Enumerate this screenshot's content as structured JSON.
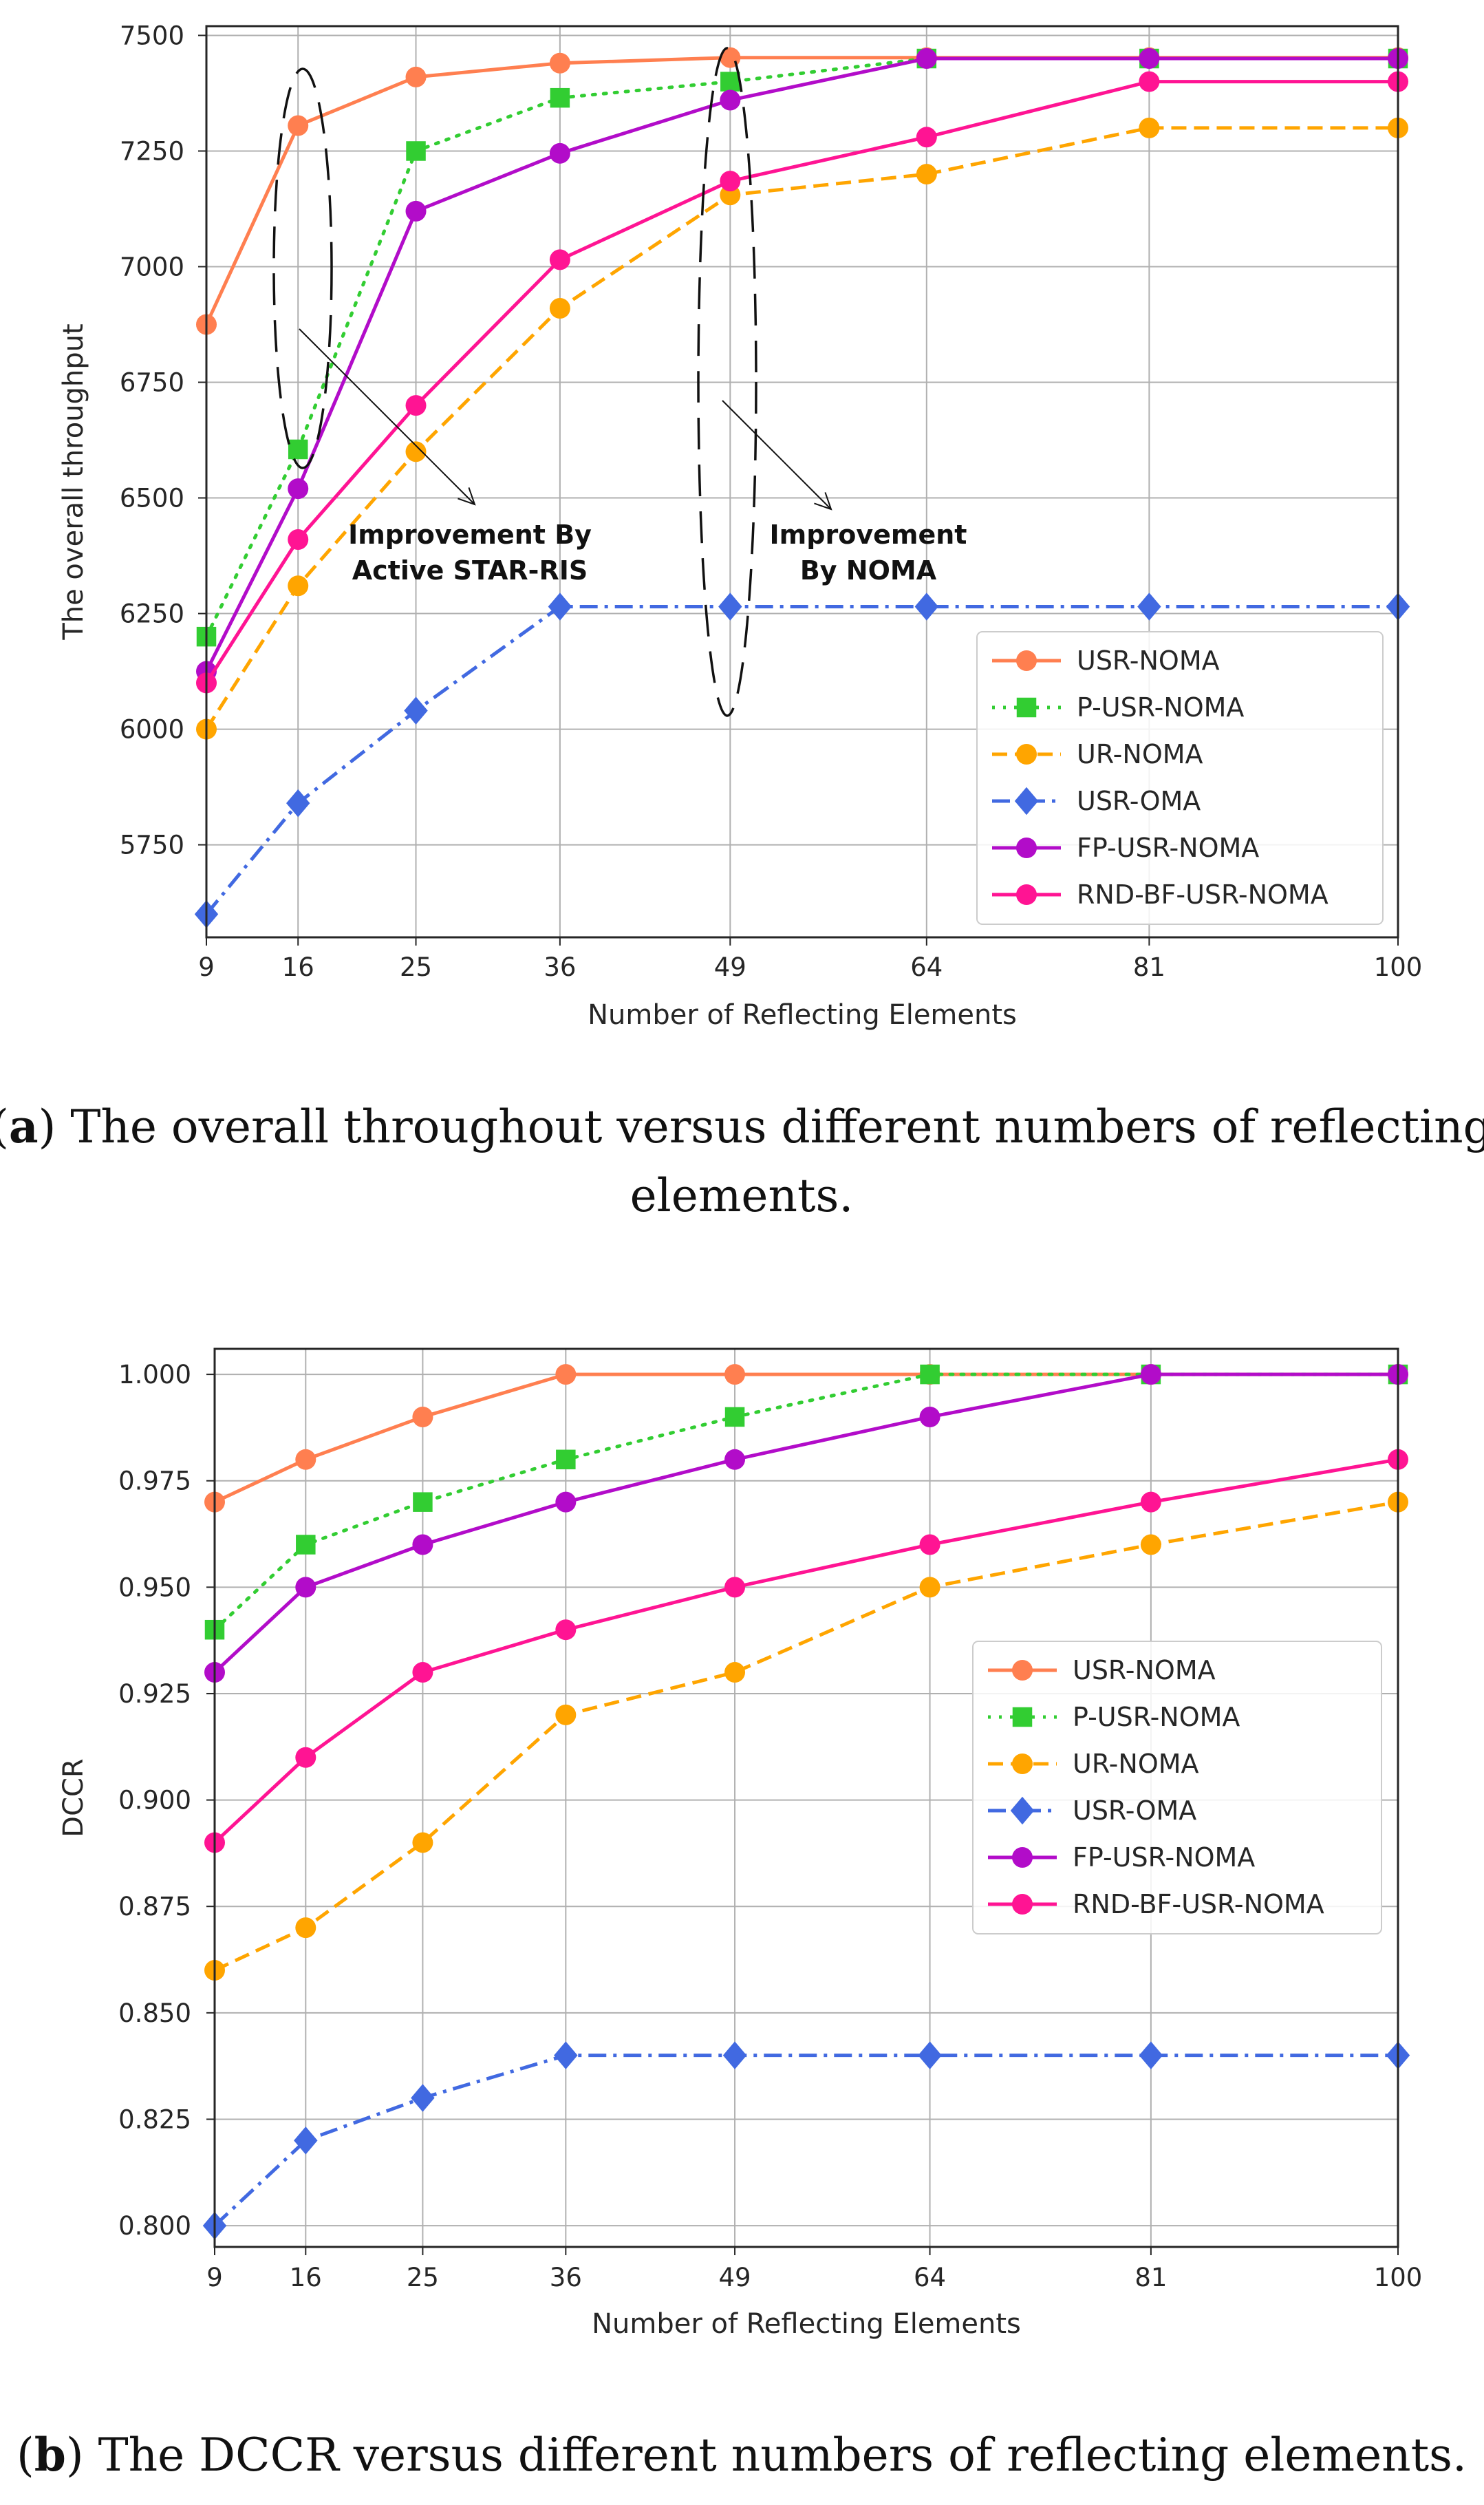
{
  "chart_data": [
    {
      "type": "line",
      "title": "",
      "xlabel": "Number of Reflecting Elements",
      "ylabel": "The overall throughput",
      "x": [
        9,
        16,
        25,
        36,
        49,
        64,
        81,
        100
      ],
      "x_ticks": [
        "9",
        "16",
        "25",
        "36",
        "49",
        "64",
        "81",
        "100"
      ],
      "xlim": [
        9,
        100
      ],
      "ylim": [
        5550,
        7520
      ],
      "y_ticks": [
        5750,
        6000,
        6250,
        6500,
        6750,
        7000,
        7250,
        7500
      ],
      "y_tick_labels": [
        "5750",
        "6000",
        "6250",
        "6500",
        "6750",
        "7000",
        "7250",
        "7500"
      ],
      "grid": true,
      "legend_position": "lower-right",
      "series": [
        {
          "name": "USR-NOMA",
          "color": "#ff7f50",
          "dash": "solid",
          "marker": "circle",
          "values": [
            6875,
            7305,
            7410,
            7440,
            7452,
            7452,
            7452,
            7452
          ]
        },
        {
          "name": "P-USR-NOMA",
          "color": "#32cd32",
          "dash": "dotted",
          "marker": "square",
          "values": [
            6200,
            6605,
            7250,
            7365,
            7400,
            7450,
            7450,
            7450
          ]
        },
        {
          "name": "UR-NOMA",
          "color": "#ffa500",
          "dash": "dashed",
          "marker": "circle",
          "values": [
            6000,
            6310,
            6600,
            6910,
            7155,
            7200,
            7300,
            7300
          ]
        },
        {
          "name": "USR-OMA",
          "color": "#4169e1",
          "dash": "dashdot",
          "marker": "diamond",
          "values": [
            5600,
            5840,
            6040,
            6265,
            6265,
            6265,
            6265,
            6265
          ]
        },
        {
          "name": "FP-USR-NOMA",
          "color": "#b20cc9",
          "dash": "solid",
          "marker": "circle",
          "values": [
            6125,
            6520,
            7120,
            7245,
            7360,
            7450,
            7450,
            7450
          ]
        },
        {
          "name": "RND-BF-USR-NOMA",
          "color": "#ff1493",
          "dash": "solid",
          "marker": "circle",
          "values": [
            6100,
            6410,
            6700,
            7015,
            7185,
            7280,
            7400,
            7400
          ]
        }
      ],
      "annotations": [
        {
          "line1": "Improvement By",
          "line2": "Active STAR-RIS",
          "at_x": 16
        },
        {
          "line1": "Improvement",
          "line2": "By NOMA",
          "at_x": 49
        }
      ]
    },
    {
      "type": "line",
      "title": "",
      "xlabel": "Number of Reflecting Elements",
      "ylabel": "DCCR",
      "x": [
        9,
        16,
        25,
        36,
        49,
        64,
        81,
        100
      ],
      "x_ticks": [
        "9",
        "16",
        "25",
        "36",
        "49",
        "64",
        "81",
        "100"
      ],
      "xlim": [
        9,
        100
      ],
      "ylim": [
        0.795,
        1.006
      ],
      "y_ticks": [
        0.8,
        0.825,
        0.85,
        0.875,
        0.9,
        0.925,
        0.95,
        0.975,
        1.0
      ],
      "y_tick_labels": [
        "0.800",
        "0.825",
        "0.850",
        "0.875",
        "0.900",
        "0.925",
        "0.950",
        "0.975",
        "1.000"
      ],
      "grid": true,
      "legend_position": "center-right",
      "series": [
        {
          "name": "USR-NOMA",
          "color": "#ff7f50",
          "dash": "solid",
          "marker": "circle",
          "values": [
            0.97,
            0.98,
            0.99,
            1.0,
            1.0,
            1.0,
            1.0,
            1.0
          ]
        },
        {
          "name": "P-USR-NOMA",
          "color": "#32cd32",
          "dash": "dotted",
          "marker": "square",
          "values": [
            0.94,
            0.96,
            0.97,
            0.98,
            0.99,
            1.0,
            1.0,
            1.0
          ]
        },
        {
          "name": "UR-NOMA",
          "color": "#ffa500",
          "dash": "dashed",
          "marker": "circle",
          "values": [
            0.86,
            0.87,
            0.89,
            0.92,
            0.93,
            0.95,
            0.96,
            0.97
          ]
        },
        {
          "name": "USR-OMA",
          "color": "#4169e1",
          "dash": "dashdot",
          "marker": "diamond",
          "values": [
            0.8,
            0.82,
            0.83,
            0.84,
            0.84,
            0.84,
            0.84,
            0.84
          ]
        },
        {
          "name": "FP-USR-NOMA",
          "color": "#b20cc9",
          "dash": "solid",
          "marker": "circle",
          "values": [
            0.93,
            0.95,
            0.96,
            0.97,
            0.98,
            0.99,
            1.0,
            1.0
          ]
        },
        {
          "name": "RND-BF-USR-NOMA",
          "color": "#ff1493",
          "dash": "solid",
          "marker": "circle",
          "values": [
            0.89,
            0.91,
            0.93,
            0.94,
            0.95,
            0.96,
            0.97,
            0.98
          ]
        }
      ],
      "annotations": []
    }
  ],
  "captions": {
    "a": {
      "letter": "a",
      "line1": ") The overall throughout versus different numbers of reflecting",
      "line2": "elements."
    },
    "b": {
      "letter": "b",
      "line1": ") The DCCR versus different numbers of reflecting elements."
    }
  }
}
